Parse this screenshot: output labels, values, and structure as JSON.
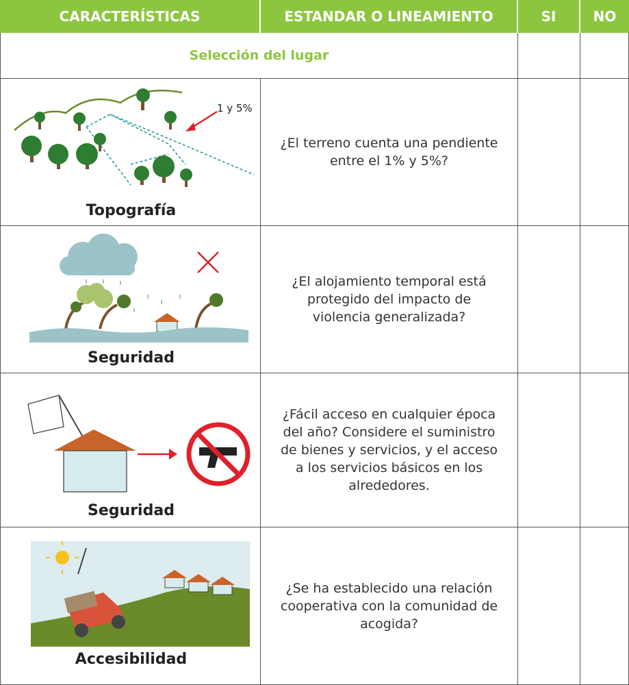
{
  "header": [
    "CARACTERÍSTICAS",
    "ESTANDAR O LINEAMIENTO",
    "SI",
    "NO"
  ],
  "section": "Selección del lugar",
  "rows": [
    {
      "label": "Topografía",
      "annotation": "1 y 5%",
      "question": "¿El terreno cuenta una pendiente entre el 1% y 5%?"
    },
    {
      "label": "Seguridad",
      "question": "¿El alojamiento temporal está protegido del impacto de violencia generalizada?"
    },
    {
      "label": "Seguridad",
      "question": "¿Fácil  acceso en cualquier época del año? Considere el suministro de bienes y servicios, y el acceso a los servicios básicos en los alrededores."
    },
    {
      "label": "Accesibilidad",
      "question": "¿Se ha establecido una relación cooperativa con la comunidad de acogida?"
    }
  ]
}
